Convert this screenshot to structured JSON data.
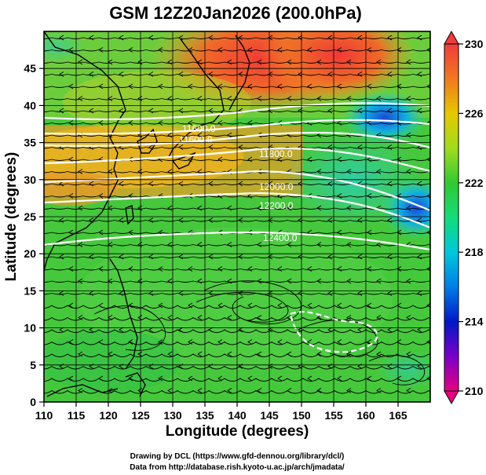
{
  "title": "GSM 12Z20Jan2026 (200.0hPa)",
  "x_axis": {
    "label": "Longitude (degrees)",
    "ticks": [
      "110",
      "115",
      "120",
      "125",
      "130",
      "135",
      "140",
      "145",
      "150",
      "155",
      "160",
      "165"
    ]
  },
  "y_axis": {
    "label": "Latitude  (degrees)",
    "ticks": [
      "0",
      "5",
      "10",
      "15",
      "20",
      "25",
      "30",
      "35",
      "40",
      "45"
    ]
  },
  "colorbar": {
    "ticks": [
      "210",
      "214",
      "218",
      "222",
      "226",
      "230"
    ]
  },
  "contour_labels": [
    "11600.0",
    "11600.0",
    "11800.0",
    "12000.0",
    "12200.0",
    "12400.0"
  ],
  "credits": {
    "line1": "Drawing by DCL (https://www.gfd-dennou.org/library/dcl/)",
    "line2": "Data from http://database.rish.kyoto-u.ac.jp/arch/jmadata/"
  },
  "chart_data": {
    "type": "heatmap",
    "title": "GSM 12Z20Jan2026 (200.0hPa)",
    "xlabel": "Longitude (degrees)",
    "ylabel": "Latitude  (degrees)",
    "xlim": [
      110,
      170
    ],
    "ylim": [
      0,
      50
    ],
    "color_range": [
      210,
      230
    ],
    "colorbar_ticks": [
      210,
      214,
      218,
      222,
      226,
      230
    ],
    "overlays": [
      "wind streamlines",
      "geopotential height contours (white)"
    ],
    "contour_labels": [
      11600.0,
      11800.0,
      12000.0,
      12200.0,
      12400.0
    ]
  }
}
